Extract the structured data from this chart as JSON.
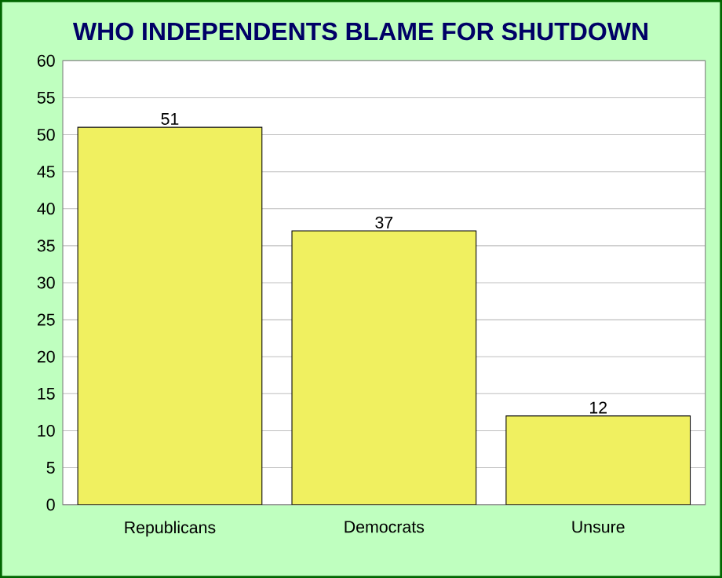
{
  "chart_data": {
    "type": "bar",
    "title": "WHO INDEPENDENTS BLAME FOR SHUTDOWN",
    "categories": [
      "Republicans",
      "Democrats",
      "Unsure"
    ],
    "values": [
      51,
      37,
      12
    ],
    "color": "#f0f060",
    "ylim": [
      0,
      60
    ],
    "yticks": [
      0,
      5,
      10,
      15,
      20,
      25,
      30,
      35,
      40,
      45,
      50,
      55,
      60
    ],
    "grid": "y",
    "data_labels": true
  }
}
